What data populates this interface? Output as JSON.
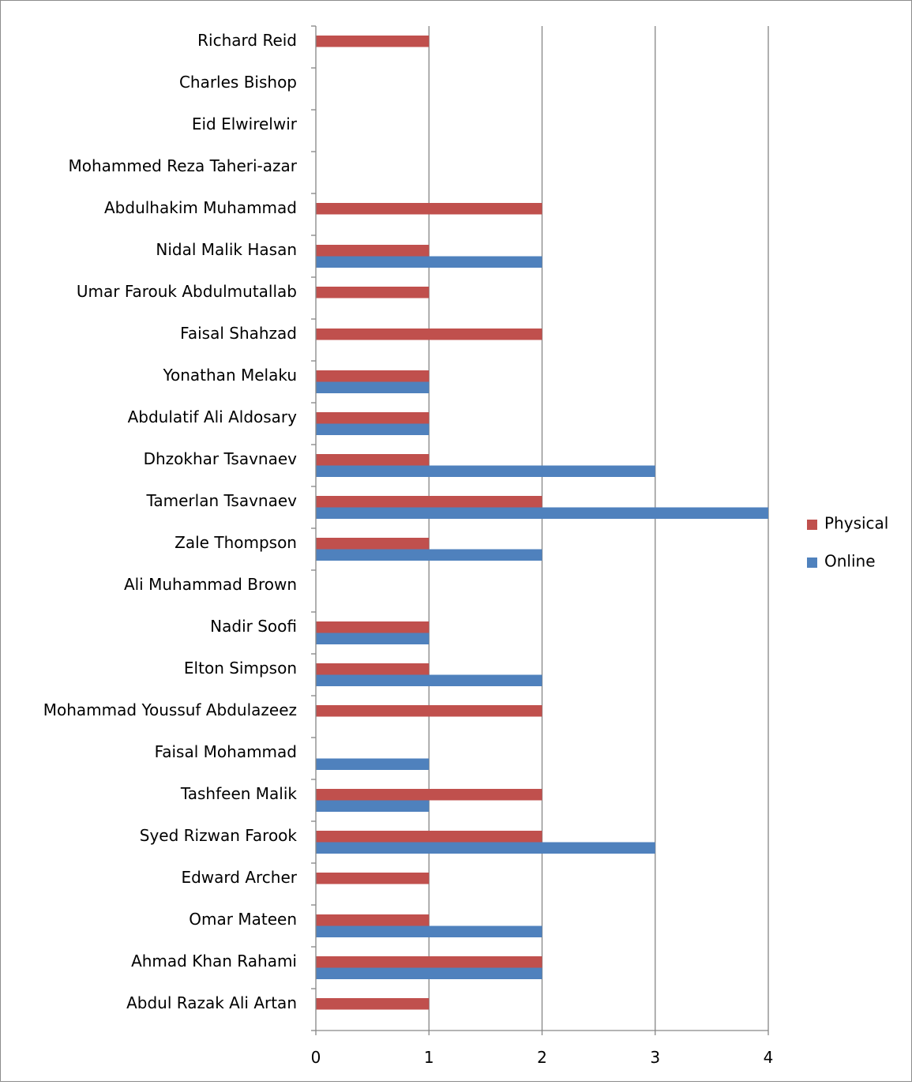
{
  "chart_data": {
    "type": "bar",
    "orientation": "horizontal",
    "title": "",
    "xlabel": "",
    "ylabel": "",
    "xlim": [
      0,
      4
    ],
    "x_ticks": [
      "0",
      "1",
      "2",
      "3",
      "4"
    ],
    "grid": "vertical major gridlines",
    "legend_position": "right",
    "categories": [
      "Richard Reid",
      "Charles Bishop",
      "Eid Elwirelwir",
      "Mohammed Reza Taheri-azar",
      "Abdulhakim Muhammad",
      "Nidal Malik Hasan",
      "Umar Farouk Abdulmutallab",
      "Faisal Shahzad",
      "Yonathan Melaku",
      "Abdulatif Ali Aldosary",
      "Dhzokhar Tsavnaev",
      "Tamerlan Tsavnaev",
      "Zale Thompson",
      "Ali Muhammad Brown",
      "Nadir Soofi",
      "Elton Simpson",
      "Mohammad Youssuf Abdulazeez",
      "Faisal Mohammad",
      "Tashfeen Malik",
      "Syed Rizwan Farook",
      "Edward Archer",
      "Omar Mateen",
      "Ahmad Khan Rahami",
      "Abdul Razak Ali Artan"
    ],
    "series": [
      {
        "name": "Physical",
        "color": "#c0504d",
        "values": [
          1,
          0,
          0,
          0,
          2,
          1,
          1,
          2,
          1,
          1,
          1,
          2,
          1,
          0,
          1,
          1,
          2,
          0,
          2,
          2,
          1,
          1,
          2,
          1
        ]
      },
      {
        "name": "Online",
        "color": "#4f81bd",
        "values": [
          0,
          0,
          0,
          0,
          0,
          2,
          0,
          0,
          1,
          1,
          3,
          4,
          2,
          0,
          1,
          2,
          0,
          1,
          1,
          3,
          0,
          2,
          2,
          0
        ]
      }
    ],
    "legend_order": [
      "Physical",
      "Online"
    ]
  }
}
